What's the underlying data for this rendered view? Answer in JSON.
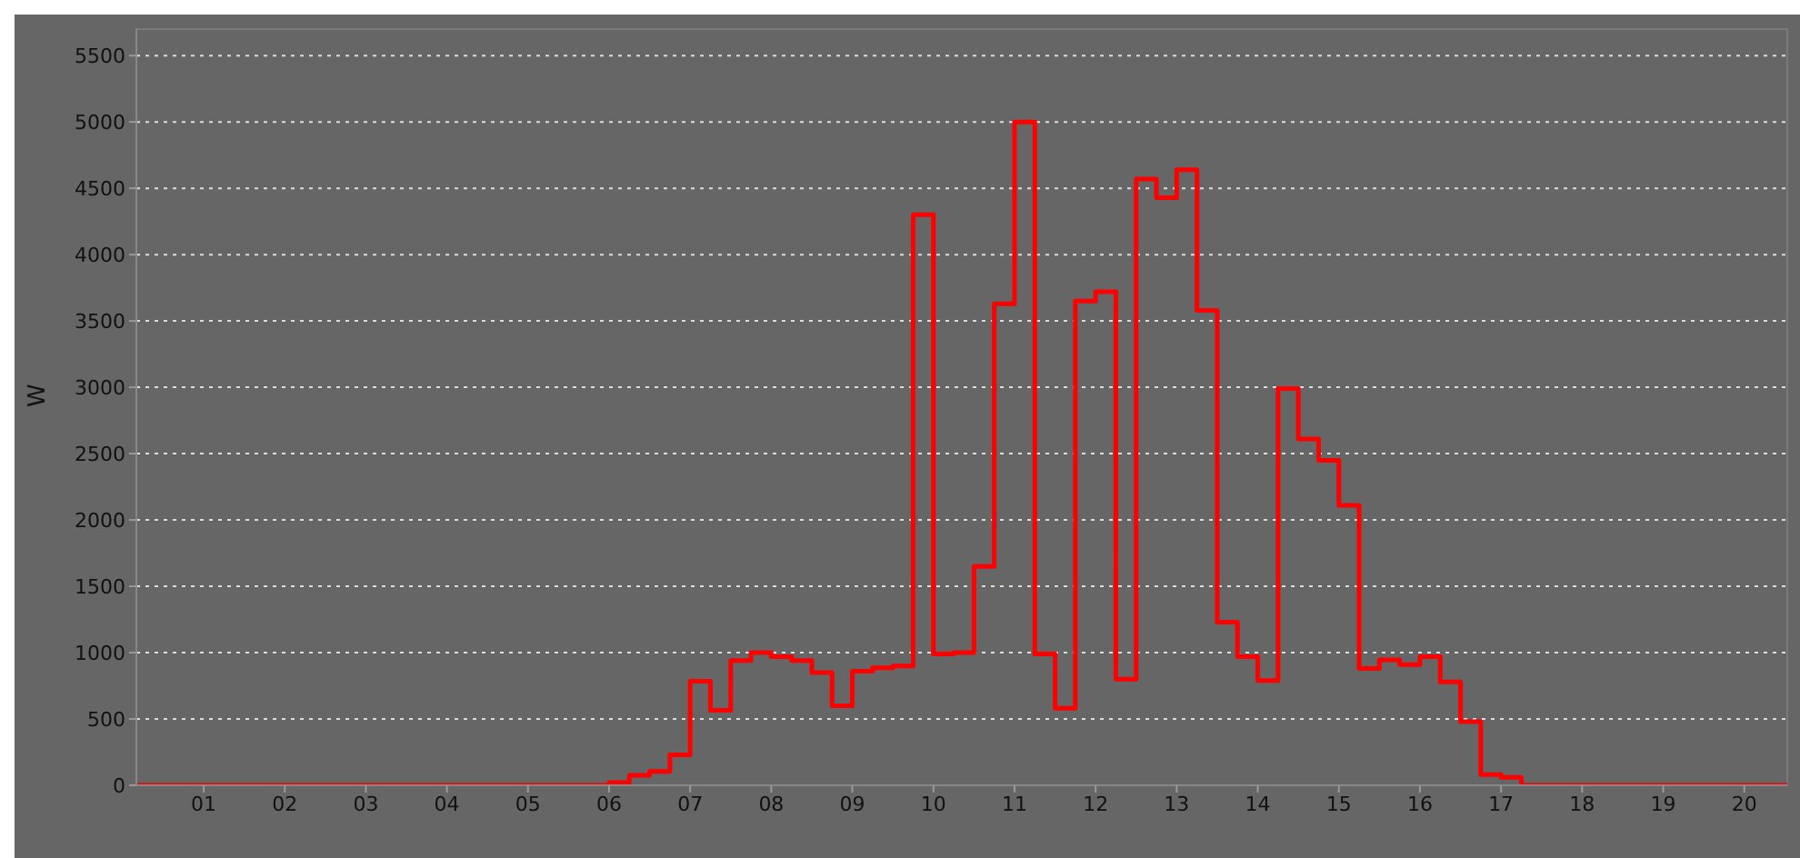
{
  "chart_data": {
    "type": "step",
    "ylabel": "W",
    "x": [
      0.17,
      6,
      6.25,
      6.5,
      6.75,
      7,
      7.25,
      7.5,
      7.75,
      8,
      8.25,
      8.5,
      8.75,
      9,
      9.25,
      9.5,
      9.75,
      10,
      10.25,
      10.5,
      10.75,
      11,
      11.25,
      11.5,
      11.75,
      12,
      12.25,
      12.5,
      12.75,
      13,
      13.25,
      13.5,
      13.75,
      14,
      14.25,
      14.5,
      14.75,
      15,
      15.25,
      15.5,
      15.75,
      16,
      16.25,
      16.5,
      16.75,
      17,
      17.25,
      20.53
    ],
    "series": [
      {
        "color": "#ff0000",
        "values": [
          0,
          20,
          75,
          105,
          230,
          785,
          565,
          940,
          1000,
          970,
          940,
          850,
          600,
          860,
          885,
          900,
          4300,
          990,
          1000,
          1650,
          3630,
          5000,
          990,
          580,
          3650,
          3720,
          800,
          4570,
          4430,
          4640,
          3580,
          1230,
          970,
          790,
          2990,
          2610,
          2450,
          2110,
          880,
          945,
          910,
          970,
          780,
          480,
          80,
          60,
          0,
          0
        ]
      }
    ],
    "xlim": [
      0.17,
      20.53
    ],
    "xticks": [
      {
        "value": 1,
        "label": "01"
      },
      {
        "value": 2,
        "label": "02"
      },
      {
        "value": 3,
        "label": "03"
      },
      {
        "value": 4,
        "label": "04"
      },
      {
        "value": 5,
        "label": "05"
      },
      {
        "value": 6,
        "label": "06"
      },
      {
        "value": 7,
        "label": "07"
      },
      {
        "value": 8,
        "label": "08"
      },
      {
        "value": 9,
        "label": "09"
      },
      10,
      11,
      12,
      13,
      14,
      15,
      16,
      17,
      18,
      19,
      20
    ],
    "ylim": [
      0,
      5700
    ],
    "yticks": [
      0,
      500,
      1000,
      1500,
      2000,
      2500,
      3000,
      3500,
      4000,
      4500,
      5000,
      5500
    ],
    "grid": "y",
    "marker": "none",
    "line_style": "solid",
    "legend": false
  }
}
